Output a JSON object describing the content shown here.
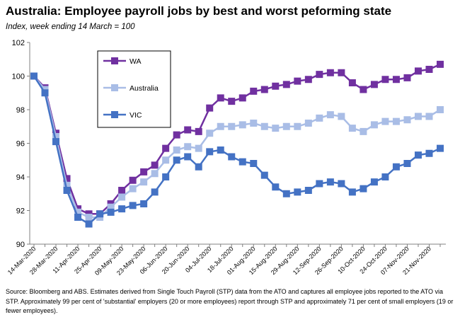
{
  "header": {
    "title": "Australia: Employee payroll jobs by best and worst peforming state",
    "subtitle": "Index, week ending 14 March = 100"
  },
  "footer": {
    "note": "Source: Bloomberg and ABS. Estimates derived from Single Touch Payroll (STP) data from the ATO and captures all employee jobs reported to the ATO via STP. Approximately 99 per cent of 'substantial' employers (20 or more employees) report through STP and approximately 71 per cent of small employers (19 or fewer employees)."
  },
  "chart_data": {
    "type": "line",
    "title": "Australia: Employee payroll jobs by best and worst peforming state",
    "subtitle": "Index, week ending 14 March = 100",
    "ylim": [
      90,
      102
    ],
    "yticks": [
      90,
      92,
      94,
      96,
      98,
      100,
      102
    ],
    "grid": false,
    "legend_position": "top-left",
    "x": [
      "14-Mar-2020",
      "21-Mar-2020",
      "28-Mar-2020",
      "04-Apr-2020",
      "11-Apr-2020",
      "18-Apr-2020",
      "25-Apr-2020",
      "02-May-2020",
      "09-May-2020",
      "16-May-2020",
      "23-May-2020",
      "30-May-2020",
      "06-Jun-2020",
      "13-Jun-2020",
      "20-Jun-2020",
      "27-Jun-2020",
      "04-Jul-2020",
      "11-Jul-2020",
      "18-Jul-2020",
      "25-Jul-2020",
      "01-Aug-2020",
      "08-Aug-2020",
      "15-Aug-2020",
      "22-Aug-2020",
      "29-Aug-2020",
      "05-Sep-2020",
      "12-Sep-2020",
      "19-Sep-2020",
      "26-Sep-2020",
      "03-Oct-2020",
      "10-Oct-2020",
      "17-Oct-2020",
      "24-Oct-2020",
      "31-Oct-2020",
      "07-Nov-2020",
      "14-Nov-2020",
      "21-Nov-2020",
      "28-Nov-2020"
    ],
    "xtick_labels": [
      "14-Mar-2020",
      "28-Mar-2020",
      "11-Apr-2020",
      "25-Apr-2020",
      "09-May-2020",
      "23-May-2020",
      "06-Jun-2020",
      "20-Jun-2020",
      "04-Jul-2020",
      "18-Jul-2020",
      "01-Aug-2020",
      "15-Aug-2020",
      "29-Aug-2020",
      "12-Sep-2020",
      "26-Sep-2020",
      "10-Oct-2020",
      "24-Oct-2020",
      "07-Nov-2020",
      "21-Nov-2020"
    ],
    "series": [
      {
        "name": "WA",
        "color": "#7030a0",
        "values": [
          100.0,
          99.3,
          96.6,
          93.9,
          92.1,
          91.8,
          91.8,
          92.4,
          93.2,
          93.8,
          94.3,
          94.7,
          95.7,
          96.5,
          96.8,
          96.7,
          98.1,
          98.7,
          98.5,
          98.7,
          99.1,
          99.2,
          99.4,
          99.5,
          99.7,
          99.8,
          100.1,
          100.2,
          100.2,
          99.6,
          99.2,
          99.5,
          99.8,
          99.8,
          99.9,
          100.3,
          100.4,
          100.7
        ]
      },
      {
        "name": "Australia",
        "color": "#a9bde6",
        "values": [
          100.0,
          99.2,
          96.4,
          93.5,
          91.9,
          91.6,
          91.6,
          92.2,
          92.8,
          93.3,
          93.7,
          94.2,
          95.0,
          95.6,
          95.8,
          95.7,
          96.6,
          97.0,
          97.0,
          97.1,
          97.2,
          97.0,
          96.9,
          97.0,
          97.0,
          97.2,
          97.5,
          97.7,
          97.6,
          96.9,
          96.7,
          97.1,
          97.3,
          97.3,
          97.4,
          97.6,
          97.6,
          98.0
        ]
      },
      {
        "name": "VIC",
        "color": "#4472c4",
        "values": [
          100.0,
          99.0,
          96.1,
          93.2,
          91.6,
          91.2,
          91.8,
          91.9,
          92.1,
          92.3,
          92.4,
          93.1,
          94.0,
          95.0,
          95.2,
          94.6,
          95.5,
          95.6,
          95.2,
          94.9,
          94.8,
          94.1,
          93.4,
          93.0,
          93.1,
          93.2,
          93.6,
          93.7,
          93.6,
          93.1,
          93.3,
          93.7,
          94.0,
          94.6,
          94.8,
          95.3,
          95.4,
          95.7
        ]
      }
    ]
  }
}
